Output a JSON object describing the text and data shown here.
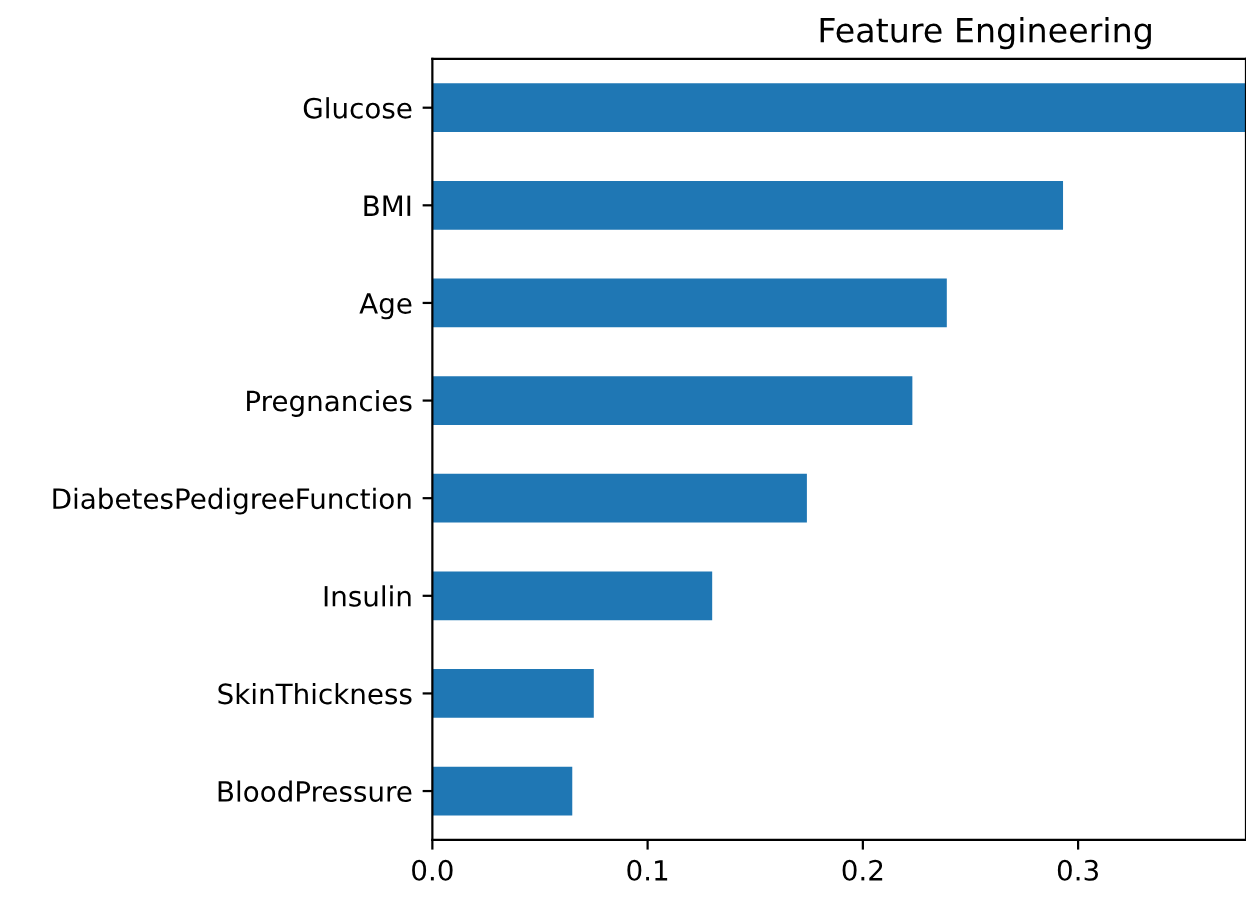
{
  "chart_data": {
    "type": "bar",
    "orientation": "horizontal",
    "title": "Feature Engineering",
    "categories": [
      "Glucose",
      "BMI",
      "Age",
      "Pregnancies",
      "DiabetesPedigreeFunction",
      "Insulin",
      "SkinThickness",
      "BloodPressure"
    ],
    "values": [
      0.378,
      0.293,
      0.239,
      0.223,
      0.174,
      0.13,
      0.075,
      0.065
    ],
    "color": "#1f77b4",
    "xlim": [
      0,
      0.378
    ],
    "xticks": [
      {
        "value": 0,
        "label": "0.0"
      },
      {
        "value": 0.1,
        "label": "0.1"
      },
      {
        "value": 0.2,
        "label": "0.2"
      },
      {
        "value": 0.3,
        "label": "0.3"
      }
    ],
    "grid": false,
    "legend": false
  }
}
